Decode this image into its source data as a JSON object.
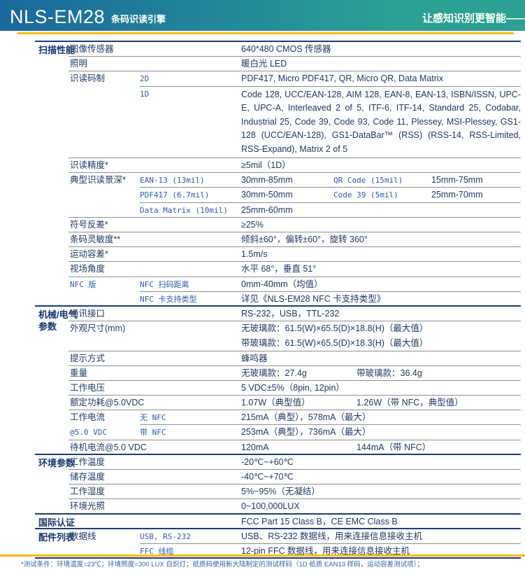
{
  "header": {
    "title": "NLS-EM28",
    "subtitle": "条码识读引擎",
    "slogan": "让感知识别更智能——"
  },
  "colors": {
    "grad_l": "#19689d",
    "grad_r": "#2ba093",
    "accent_yellow": "#fdb813",
    "navy_border": "#1c3e6e",
    "navy_text": "#1f3864",
    "section_navy": "#17356d",
    "mono_blue": "#2b5ca8",
    "gray_line": "#8f8f8f",
    "note_blue": "#2e5fa8"
  },
  "spec_table": {
    "rows": [
      {
        "section": "扫描性能",
        "prop": "图像传感器",
        "value": "640*480 CMOS 传感器",
        "div": "prop"
      },
      {
        "prop": "照明",
        "value": "暖白光 LED",
        "div": "prop"
      },
      {
        "prop": "识读码制",
        "sub": "2D",
        "value": "PDF417, Micro PDF417, QR, Micro QR, Data Matrix",
        "div": "sub"
      },
      {
        "sub": "1D",
        "value": "Code 128, UCC/EAN-128, AIM 128, EAN-8, EAN-13, ISBN/ISSN, UPC-E, UPC-A, Interleaved 2 of 5, ITF-6, ITF-14, Standard 25, Codabar, Industrial 25, Code 39, Code 93, Code 11, Plessey, MSI-Plessey, GS1-128 (UCC/EAN-128), GS1-DataBar™ (RSS) (RSS-14, RSS-Limited, RSS-Expand), Matrix 2 of 5",
        "justify": true,
        "div": "prop"
      },
      {
        "prop": "识读精度*",
        "value": "≥5mil（1D）",
        "div": "prop"
      },
      {
        "prop": "典型识读景深*",
        "sub": "EAN-13 (13mil)",
        "value": "30mm-85mm",
        "sub2": "QR Code (15mil)",
        "value2": "15mm-75mm",
        "div": "sub"
      },
      {
        "sub": "PDF417 (6.7mil)",
        "value": "30mm-50mm",
        "sub2": "Code 39 (5mil)",
        "value2": "25mm-70mm",
        "div": "sub"
      },
      {
        "sub": "Data Matrix (10mil)",
        "value": "25mm-60mm",
        "div": "prop"
      },
      {
        "prop": "符号反差*",
        "value": "≥25%",
        "div": "prop"
      },
      {
        "prop": "条码灵敏度**",
        "value": "倾斜±60°，偏转±60°，旋转 360°",
        "div": "prop"
      },
      {
        "prop": "运动容差*",
        "value": "1.5m/s",
        "div": "prop"
      },
      {
        "prop": "视场角度",
        "value": "水平 68°，垂直 51°",
        "div": "prop"
      },
      {
        "prop": "NFC 版",
        "prop_mono": true,
        "sub": "NFC 扫码距离",
        "value": "0mm-40mm（均值）",
        "div": "sub"
      },
      {
        "sub": "NFC 卡支持类型",
        "value": "详见《NLS-EM28 NFC 卡支持类型》",
        "div": "section"
      },
      {
        "section": "机械/电气参数",
        "prop": "通讯接口",
        "value": "RS-232，USB，TTL-232",
        "div": "prop"
      },
      {
        "prop": "外观尺寸(mm)",
        "value": "无玻璃款：61.5(W)×65.5(D)×18.8(H)（最大值）",
        "div": "none"
      },
      {
        "value": "带玻璃款：61.5(W)×65.5(D)×18.3(H)（最大值）",
        "div": "prop"
      },
      {
        "prop": "提示方式",
        "value": "蜂鸣器",
        "div": "prop"
      },
      {
        "prop": "重量",
        "value": "无玻璃款：27.4g",
        "value2x": "带玻璃款：36.4g",
        "div": "prop"
      },
      {
        "prop": "工作电压",
        "value": "5 VDC±5%（8pin, 12pin）",
        "div": "prop"
      },
      {
        "prop": "额定功耗@5.0VDC",
        "value": "1.07W（典型值）",
        "value2x": "1.26W（带 NFC，典型值）",
        "div": "prop"
      },
      {
        "prop": "工作电流",
        "sub": "无 NFC",
        "value": "215mA（典型），578mA（最大）",
        "div": "sub"
      },
      {
        "prop": "@5.0 VDC",
        "prop_mono": true,
        "sub": "带 NFC",
        "value": "253mA（典型），736mA（最大）",
        "div": "prop"
      },
      {
        "prop": "待机电流@5.0 VDC",
        "value": "120mA",
        "value2x": "144mA（带 NFC）",
        "div": "section"
      },
      {
        "section": "环境参数",
        "prop": "工作温度",
        "value": "-20℃~+60℃",
        "div": "prop"
      },
      {
        "prop": "储存温度",
        "value": "-40℃~+70℃",
        "div": "prop"
      },
      {
        "prop": "工作湿度",
        "value": "5%~95%（无凝结）",
        "div": "prop"
      },
      {
        "prop": "环境光照",
        "value": "0~100,000LUX",
        "div": "section"
      },
      {
        "section": "国际认证",
        "value": "FCC Part 15 Class B，CE EMC Class B",
        "div": "section"
      },
      {
        "section": "配件列表",
        "prop": "数据线",
        "sub": "USB, RS-232",
        "value": "USB、RS-232 数据线，用来连接信息接收主机",
        "div": "sub"
      },
      {
        "sub": "FFC 线缆",
        "value": "12-pin FFC 数据线，用来连接信息接收主机",
        "div": "section"
      }
    ]
  },
  "footer": {
    "note": "*测试条件：环境温度=23℃；环境照度=300 LUX 白炽灯；纸质码使用新大陆制定的测试样码（1D 纸质 EAN13 样码，运动容差测试项）；"
  }
}
